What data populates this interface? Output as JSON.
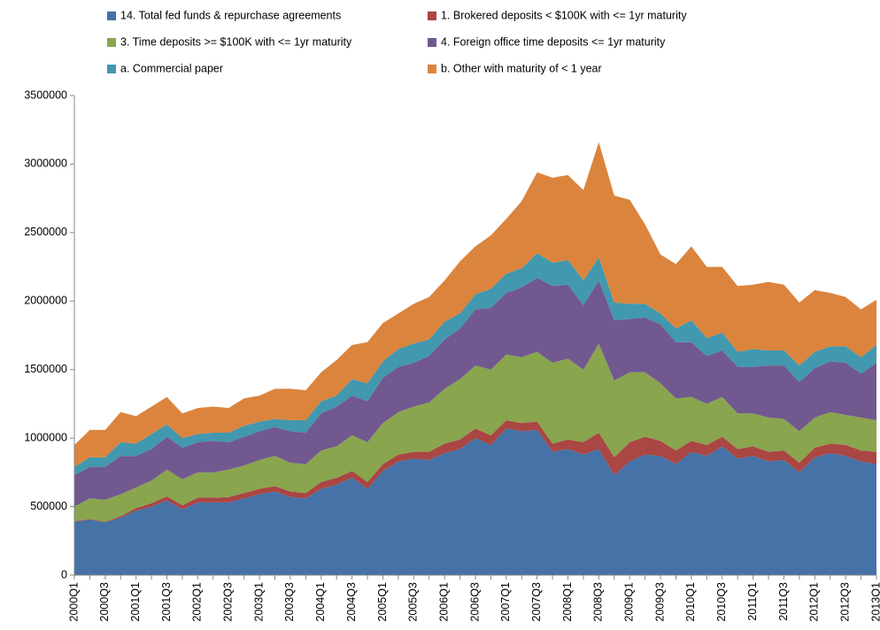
{
  "chart_data": {
    "type": "stacked-area",
    "categories": [
      "2000Q1",
      null,
      "2000Q3",
      null,
      "2001Q1",
      null,
      "2001Q3",
      null,
      "2002Q1",
      null,
      "2002Q3",
      null,
      "2003Q1",
      null,
      "2003Q3",
      null,
      "2004Q1",
      null,
      "2004Q3",
      null,
      "2005Q1",
      null,
      "2005Q3",
      null,
      "2006Q1",
      null,
      "2006Q3",
      null,
      "2007Q1",
      null,
      "2007Q3",
      null,
      "2008Q1",
      null,
      "2008Q3",
      null,
      "2009Q1",
      null,
      "2009Q3",
      null,
      "2010Q1",
      null,
      "2010Q3",
      null,
      "2011Q1",
      null,
      "2011Q3",
      null,
      "2012Q1",
      null,
      "2012Q3",
      null,
      "2013Q1"
    ],
    "series": [
      {
        "name": "14. Total fed funds & repurchase agreements",
        "color": "#4572a7",
        "values": [
          390000,
          405000,
          385000,
          420000,
          470000,
          500000,
          545000,
          480000,
          530000,
          530000,
          530000,
          560000,
          590000,
          610000,
          570000,
          560000,
          630000,
          660000,
          710000,
          630000,
          760000,
          830000,
          850000,
          840000,
          890000,
          920000,
          1000000,
          950000,
          1070000,
          1050000,
          1060000,
          900000,
          920000,
          880000,
          920000,
          730000,
          830000,
          880000,
          870000,
          810000,
          900000,
          870000,
          940000,
          850000,
          870000,
          830000,
          840000,
          750000,
          860000,
          890000,
          870000,
          830000,
          810000
        ]
      },
      {
        "name": "1. Brokered deposits < $100K with <= 1yr maturity",
        "color": "#aa4643",
        "values": [
          5000,
          5000,
          5000,
          10000,
          20000,
          25000,
          30000,
          30000,
          35000,
          35000,
          40000,
          40000,
          40000,
          40000,
          40000,
          40000,
          50000,
          50000,
          50000,
          50000,
          50000,
          50000,
          50000,
          60000,
          70000,
          70000,
          70000,
          70000,
          60000,
          60000,
          60000,
          60000,
          70000,
          90000,
          120000,
          130000,
          140000,
          130000,
          110000,
          100000,
          80000,
          80000,
          70000,
          70000,
          70000,
          70000,
          70000,
          70000,
          70000,
          70000,
          80000,
          80000,
          90000
        ]
      },
      {
        "name": "3. Time deposits >= $100K with <= 1yr maturity",
        "color": "#89a54e",
        "values": [
          105000,
          150000,
          160000,
          160000,
          150000,
          165000,
          195000,
          190000,
          185000,
          185000,
          200000,
          200000,
          210000,
          220000,
          210000,
          210000,
          230000,
          230000,
          260000,
          290000,
          300000,
          310000,
          330000,
          360000,
          400000,
          440000,
          460000,
          480000,
          480000,
          480000,
          510000,
          590000,
          590000,
          530000,
          650000,
          560000,
          510000,
          470000,
          420000,
          380000,
          320000,
          300000,
          290000,
          260000,
          240000,
          250000,
          230000,
          230000,
          220000,
          230000,
          220000,
          240000,
          230000
        ]
      },
      {
        "name": "4. Foreign office time deposits <= 1yr maturity",
        "color": "#71588f",
        "values": [
          230000,
          230000,
          240000,
          280000,
          230000,
          230000,
          240000,
          230000,
          220000,
          230000,
          200000,
          210000,
          210000,
          210000,
          230000,
          230000,
          270000,
          290000,
          290000,
          300000,
          330000,
          330000,
          320000,
          340000,
          360000,
          370000,
          410000,
          450000,
          450000,
          510000,
          540000,
          560000,
          540000,
          470000,
          460000,
          440000,
          390000,
          400000,
          430000,
          410000,
          400000,
          350000,
          340000,
          340000,
          340000,
          380000,
          390000,
          360000,
          360000,
          370000,
          380000,
          320000,
          420000
        ]
      },
      {
        "name": "a. Commercial paper",
        "color": "#4198af",
        "values": [
          60000,
          70000,
          70000,
          100000,
          90000,
          110000,
          90000,
          70000,
          60000,
          60000,
          70000,
          80000,
          70000,
          60000,
          80000,
          90000,
          90000,
          80000,
          120000,
          130000,
          120000,
          130000,
          140000,
          120000,
          130000,
          110000,
          110000,
          140000,
          140000,
          140000,
          180000,
          170000,
          180000,
          180000,
          170000,
          130000,
          110000,
          100000,
          80000,
          100000,
          160000,
          130000,
          130000,
          110000,
          130000,
          110000,
          110000,
          120000,
          120000,
          110000,
          120000,
          120000,
          130000
        ]
      },
      {
        "name": "b. Other with maturity of < 1 year",
        "color": "#db843d",
        "values": [
          160000,
          200000,
          200000,
          220000,
          200000,
          200000,
          200000,
          180000,
          190000,
          190000,
          180000,
          200000,
          190000,
          220000,
          230000,
          220000,
          210000,
          260000,
          250000,
          300000,
          280000,
          260000,
          290000,
          310000,
          300000,
          380000,
          350000,
          390000,
          400000,
          490000,
          590000,
          620000,
          620000,
          660000,
          840000,
          780000,
          760000,
          580000,
          430000,
          470000,
          540000,
          520000,
          480000,
          480000,
          470000,
          500000,
          480000,
          460000,
          450000,
          390000,
          360000,
          350000,
          330000
        ]
      }
    ],
    "ylim": [
      0,
      3500000
    ],
    "yticks": [
      0,
      500000,
      1000000,
      1500000,
      2000000,
      2500000,
      3000000,
      3500000
    ],
    "grid": false,
    "legend": "top"
  }
}
